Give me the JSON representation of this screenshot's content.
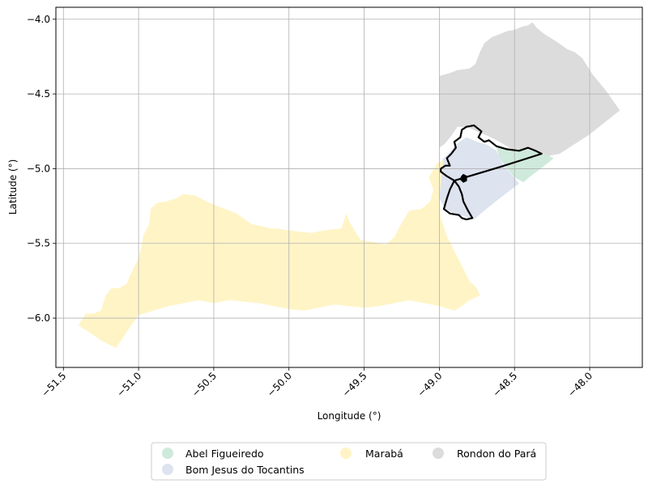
{
  "map": {
    "xlabel": "Longitude (°)",
    "ylabel": "Latitude (°)",
    "xlim": [
      -51.55,
      -47.65
    ],
    "ylim": [
      -6.33,
      -3.92
    ],
    "xticks": [
      -51.5,
      -51.0,
      -50.5,
      -50.0,
      -49.5,
      -49.0,
      -48.5,
      -48.0
    ],
    "xtick_labels": [
      "−51.5",
      "−51.0",
      "−50.5",
      "−50.0",
      "−49.5",
      "−49.0",
      "−48.5",
      "−48.0"
    ],
    "yticks": [
      -4.0,
      -4.5,
      -5.0,
      -5.5,
      -6.0
    ],
    "ytick_labels": [
      "−4.0",
      "−4.5",
      "−5.0",
      "−5.5",
      "−6.0"
    ],
    "grid": true,
    "regions": [
      {
        "key": "rondon",
        "name": "Rondon do Pará",
        "color": "#dcdcdc",
        "polygon": [
          [
            -49.0,
            -4.38
          ],
          [
            -48.93,
            -4.36
          ],
          [
            -48.88,
            -4.34
          ],
          [
            -48.8,
            -4.33
          ],
          [
            -48.76,
            -4.3
          ],
          [
            -48.73,
            -4.22
          ],
          [
            -48.7,
            -4.16
          ],
          [
            -48.65,
            -4.12
          ],
          [
            -48.6,
            -4.1
          ],
          [
            -48.55,
            -4.08
          ],
          [
            -48.5,
            -4.07
          ],
          [
            -48.45,
            -4.05
          ],
          [
            -48.41,
            -4.04
          ],
          [
            -48.38,
            -4.02
          ],
          [
            -48.35,
            -4.06
          ],
          [
            -48.3,
            -4.1
          ],
          [
            -48.22,
            -4.15
          ],
          [
            -48.15,
            -4.2
          ],
          [
            -48.1,
            -4.22
          ],
          [
            -48.05,
            -4.26
          ],
          [
            -47.98,
            -4.37
          ],
          [
            -47.89,
            -4.48
          ],
          [
            -47.8,
            -4.61
          ],
          [
            -48.0,
            -4.77
          ],
          [
            -48.2,
            -4.9
          ],
          [
            -48.3,
            -4.92
          ],
          [
            -48.37,
            -4.88
          ],
          [
            -48.42,
            -4.86
          ],
          [
            -48.5,
            -4.88
          ],
          [
            -48.55,
            -4.85
          ],
          [
            -48.62,
            -4.81
          ],
          [
            -48.68,
            -4.78
          ],
          [
            -48.75,
            -4.75
          ],
          [
            -48.82,
            -4.72
          ],
          [
            -48.88,
            -4.72
          ],
          [
            -48.92,
            -4.78
          ],
          [
            -48.96,
            -4.83
          ],
          [
            -49.0,
            -4.86
          ]
        ]
      },
      {
        "key": "abel",
        "name": "Abel Figueiredo",
        "color": "#cfeadc",
        "polygon": [
          [
            -48.62,
            -4.86
          ],
          [
            -48.5,
            -4.87
          ],
          [
            -48.42,
            -4.87
          ],
          [
            -48.3,
            -4.9
          ],
          [
            -48.24,
            -4.93
          ],
          [
            -48.3,
            -4.98
          ],
          [
            -48.38,
            -5.04
          ],
          [
            -48.44,
            -5.09
          ],
          [
            -48.5,
            -5.06
          ],
          [
            -48.55,
            -5.0
          ],
          [
            -48.6,
            -4.93
          ]
        ]
      },
      {
        "key": "bomjesus",
        "name": "Bom Jesus do Tocantins",
        "color": "#dde3ef",
        "polygon": [
          [
            -48.98,
            -4.94
          ],
          [
            -48.94,
            -4.9
          ],
          [
            -48.88,
            -4.83
          ],
          [
            -48.82,
            -4.79
          ],
          [
            -48.75,
            -4.82
          ],
          [
            -48.68,
            -4.84
          ],
          [
            -48.62,
            -4.88
          ],
          [
            -48.58,
            -4.97
          ],
          [
            -48.52,
            -5.04
          ],
          [
            -48.47,
            -5.1
          ],
          [
            -48.6,
            -5.2
          ],
          [
            -48.7,
            -5.28
          ],
          [
            -48.77,
            -5.34
          ],
          [
            -48.83,
            -5.32
          ],
          [
            -48.9,
            -5.3
          ],
          [
            -48.96,
            -5.27
          ],
          [
            -49.0,
            -5.2
          ]
        ]
      },
      {
        "key": "maraba",
        "name": "Marabá",
        "color": "#fff4c6",
        "polygon": [
          [
            -48.97,
            -4.94
          ],
          [
            -49.02,
            -4.97
          ],
          [
            -49.07,
            -5.06
          ],
          [
            -49.04,
            -5.14
          ],
          [
            -49.06,
            -5.22
          ],
          [
            -49.12,
            -5.27
          ],
          [
            -49.2,
            -5.28
          ],
          [
            -49.26,
            -5.38
          ],
          [
            -49.3,
            -5.46
          ],
          [
            -49.36,
            -5.51
          ],
          [
            -49.44,
            -5.49
          ],
          [
            -49.52,
            -5.48
          ],
          [
            -49.56,
            -5.42
          ],
          [
            -49.6,
            -5.35
          ],
          [
            -49.62,
            -5.3
          ],
          [
            -49.65,
            -5.4
          ],
          [
            -49.75,
            -5.41
          ],
          [
            -49.85,
            -5.43
          ],
          [
            -49.95,
            -5.42
          ],
          [
            -50.02,
            -5.41
          ],
          [
            -50.08,
            -5.4
          ],
          [
            -50.12,
            -5.4
          ],
          [
            -50.25,
            -5.37
          ],
          [
            -50.35,
            -5.3
          ],
          [
            -50.45,
            -5.26
          ],
          [
            -50.5,
            -5.24
          ],
          [
            -50.55,
            -5.22
          ],
          [
            -50.62,
            -5.18
          ],
          [
            -50.7,
            -5.17
          ],
          [
            -50.75,
            -5.2
          ],
          [
            -50.82,
            -5.22
          ],
          [
            -50.88,
            -5.23
          ],
          [
            -50.92,
            -5.27
          ],
          [
            -50.93,
            -5.37
          ],
          [
            -50.97,
            -5.45
          ],
          [
            -50.98,
            -5.52
          ],
          [
            -51.0,
            -5.6
          ],
          [
            -51.05,
            -5.7
          ],
          [
            -51.08,
            -5.77
          ],
          [
            -51.13,
            -5.8
          ],
          [
            -51.18,
            -5.8
          ],
          [
            -51.22,
            -5.85
          ],
          [
            -51.25,
            -5.95
          ],
          [
            -51.3,
            -5.97
          ],
          [
            -51.35,
            -5.97
          ],
          [
            -51.4,
            -6.05
          ],
          [
            -51.32,
            -6.1
          ],
          [
            -51.25,
            -6.15
          ],
          [
            -51.15,
            -6.2
          ],
          [
            -51.05,
            -6.05
          ],
          [
            -51.0,
            -5.98
          ],
          [
            -50.9,
            -5.95
          ],
          [
            -50.8,
            -5.92
          ],
          [
            -50.7,
            -5.9
          ],
          [
            -50.6,
            -5.88
          ],
          [
            -50.5,
            -5.9
          ],
          [
            -50.4,
            -5.88
          ],
          [
            -50.3,
            -5.89
          ],
          [
            -50.2,
            -5.9
          ],
          [
            -50.1,
            -5.92
          ],
          [
            -50.0,
            -5.94
          ],
          [
            -49.9,
            -5.95
          ],
          [
            -49.8,
            -5.93
          ],
          [
            -49.7,
            -5.91
          ],
          [
            -49.6,
            -5.92
          ],
          [
            -49.5,
            -5.93
          ],
          [
            -49.4,
            -5.92
          ],
          [
            -49.3,
            -5.9
          ],
          [
            -49.2,
            -5.88
          ],
          [
            -49.1,
            -5.9
          ],
          [
            -49.0,
            -5.92
          ],
          [
            -48.9,
            -5.95
          ],
          [
            -48.85,
            -5.92
          ],
          [
            -48.8,
            -5.88
          ],
          [
            -48.73,
            -5.85
          ],
          [
            -48.75,
            -5.8
          ],
          [
            -48.8,
            -5.75
          ],
          [
            -48.85,
            -5.65
          ],
          [
            -48.9,
            -5.55
          ],
          [
            -48.95,
            -5.45
          ],
          [
            -48.99,
            -5.33
          ],
          [
            -49.0,
            -5.2
          ],
          [
            -48.99,
            -5.1
          ],
          [
            -48.98,
            -5.0
          ]
        ]
      }
    ],
    "outline": {
      "color": "#000000",
      "polygon": [
        [
          -48.99,
          -5.0
        ],
        [
          -48.96,
          -4.98
        ],
        [
          -48.93,
          -4.98
        ],
        [
          -48.95,
          -4.93
        ],
        [
          -48.92,
          -4.9
        ],
        [
          -48.89,
          -4.86
        ],
        [
          -48.9,
          -4.82
        ],
        [
          -48.86,
          -4.79
        ],
        [
          -48.85,
          -4.74
        ],
        [
          -48.82,
          -4.72
        ],
        [
          -48.77,
          -4.71
        ],
        [
          -48.72,
          -4.75
        ],
        [
          -48.74,
          -4.79
        ],
        [
          -48.7,
          -4.82
        ],
        [
          -48.67,
          -4.81
        ],
        [
          -48.62,
          -4.85
        ],
        [
          -48.55,
          -4.87
        ],
        [
          -48.47,
          -4.88
        ],
        [
          -48.41,
          -4.86
        ],
        [
          -48.36,
          -4.88
        ],
        [
          -48.32,
          -4.9
        ],
        [
          -48.6,
          -4.99
        ],
        [
          -48.9,
          -5.08
        ],
        [
          -48.93,
          -5.14
        ],
        [
          -48.95,
          -5.2
        ],
        [
          -48.97,
          -5.27
        ],
        [
          -48.93,
          -5.3
        ],
        [
          -48.87,
          -5.31
        ],
        [
          -48.85,
          -5.33
        ],
        [
          -48.82,
          -5.34
        ],
        [
          -48.78,
          -5.33
        ],
        [
          -48.81,
          -5.28
        ],
        [
          -48.84,
          -5.22
        ],
        [
          -48.85,
          -5.17
        ],
        [
          -48.87,
          -5.12
        ],
        [
          -48.9,
          -5.08
        ],
        [
          -48.95,
          -5.05
        ],
        [
          -48.99,
          -5.02
        ]
      ],
      "hole": [
        [
          -48.84,
          -5.04
        ],
        [
          -48.82,
          -5.05
        ],
        [
          -48.82,
          -5.08
        ],
        [
          -48.84,
          -5.09
        ],
        [
          -48.86,
          -5.07
        ],
        [
          -48.85,
          -5.05
        ]
      ]
    }
  },
  "legend": {
    "items": [
      {
        "label": "Abel Figueiredo",
        "color": "#cfeadc"
      },
      {
        "label": "Bom Jesus do Tocantins",
        "color": "#dde3ef"
      },
      {
        "label": "Marabá",
        "color": "#fff4c6"
      },
      {
        "label": "Rondon do Pará",
        "color": "#dcdcdc"
      }
    ]
  }
}
